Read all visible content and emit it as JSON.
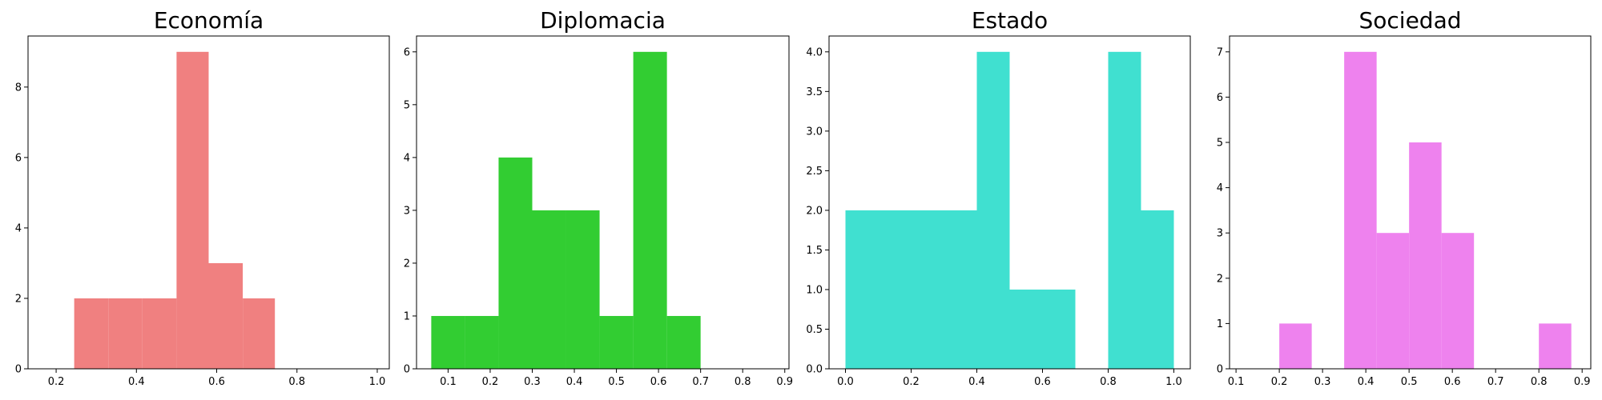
{
  "chart_data": [
    {
      "type": "bar",
      "title": "Economía",
      "color": "#f08080",
      "xlim": [
        0.13,
        1.03
      ],
      "ylim": [
        0,
        9.45
      ],
      "xticks": [
        0.2,
        0.4,
        0.6,
        0.8,
        1.0
      ],
      "xtick_labels": [
        "0.2",
        "0.4",
        "0.6",
        "0.8",
        "1.0"
      ],
      "yticks": [
        0,
        2,
        4,
        6,
        8
      ],
      "ytick_labels": [
        "0",
        "2",
        "4",
        "6",
        "8"
      ],
      "bins": [
        {
          "x0": 0.245,
          "x1": 0.33,
          "count": 2
        },
        {
          "x0": 0.33,
          "x1": 0.415,
          "count": 2
        },
        {
          "x0": 0.415,
          "x1": 0.5,
          "count": 2
        },
        {
          "x0": 0.5,
          "x1": 0.58,
          "count": 9
        },
        {
          "x0": 0.58,
          "x1": 0.665,
          "count": 3
        },
        {
          "x0": 0.665,
          "x1": 0.745,
          "count": 2
        }
      ]
    },
    {
      "type": "bar",
      "title": "Diplomacia",
      "color": "#32cd32",
      "xlim": [
        0.025,
        0.91
      ],
      "ylim": [
        0,
        6.3
      ],
      "xticks": [
        0.1,
        0.2,
        0.3,
        0.4,
        0.5,
        0.6,
        0.7,
        0.8,
        0.9
      ],
      "xtick_labels": [
        "0.1",
        "0.2",
        "0.3",
        "0.4",
        "0.5",
        "0.6",
        "0.7",
        "0.8",
        "0.9"
      ],
      "yticks": [
        0,
        1,
        2,
        3,
        4,
        5,
        6
      ],
      "ytick_labels": [
        "0",
        "1",
        "2",
        "3",
        "4",
        "5",
        "6"
      ],
      "bins": [
        {
          "x0": 0.06,
          "x1": 0.14,
          "count": 1
        },
        {
          "x0": 0.14,
          "x1": 0.22,
          "count": 1
        },
        {
          "x0": 0.22,
          "x1": 0.3,
          "count": 4
        },
        {
          "x0": 0.3,
          "x1": 0.38,
          "count": 3
        },
        {
          "x0": 0.38,
          "x1": 0.46,
          "count": 3
        },
        {
          "x0": 0.46,
          "x1": 0.54,
          "count": 1
        },
        {
          "x0": 0.54,
          "x1": 0.62,
          "count": 6
        },
        {
          "x0": 0.62,
          "x1": 0.7,
          "count": 1
        }
      ]
    },
    {
      "type": "bar",
      "title": "Estado",
      "color": "#40e0d0",
      "xlim": [
        -0.05,
        1.05
      ],
      "ylim": [
        0,
        4.2
      ],
      "xticks": [
        0.0,
        0.2,
        0.4,
        0.6,
        0.8,
        1.0
      ],
      "xtick_labels": [
        "0.0",
        "0.2",
        "0.4",
        "0.6",
        "0.8",
        "1.0"
      ],
      "yticks": [
        0,
        0.5,
        1.0,
        1.5,
        2.0,
        2.5,
        3.0,
        3.5,
        4.0
      ],
      "ytick_labels": [
        "0.0",
        "0.5",
        "1.0",
        "1.5",
        "2.0",
        "2.5",
        "3.0",
        "3.5",
        "4.0"
      ],
      "bins": [
        {
          "x0": 0.0,
          "x1": 0.1,
          "count": 2
        },
        {
          "x0": 0.1,
          "x1": 0.2,
          "count": 2
        },
        {
          "x0": 0.2,
          "x1": 0.3,
          "count": 2
        },
        {
          "x0": 0.3,
          "x1": 0.4,
          "count": 2
        },
        {
          "x0": 0.4,
          "x1": 0.5,
          "count": 4
        },
        {
          "x0": 0.5,
          "x1": 0.6,
          "count": 1
        },
        {
          "x0": 0.6,
          "x1": 0.7,
          "count": 1
        },
        {
          "x0": 0.7,
          "x1": 0.8,
          "count": 0
        },
        {
          "x0": 0.8,
          "x1": 0.9,
          "count": 4
        },
        {
          "x0": 0.9,
          "x1": 1.0,
          "count": 2
        }
      ]
    },
    {
      "type": "bar",
      "title": "Sociedad",
      "color": "#ee82ee",
      "xlim": [
        0.085,
        0.92
      ],
      "ylim": [
        0,
        7.35
      ],
      "xticks": [
        0.1,
        0.2,
        0.3,
        0.4,
        0.5,
        0.6,
        0.7,
        0.8,
        0.9
      ],
      "xtick_labels": [
        "0.1",
        "0.2",
        "0.3",
        "0.4",
        "0.5",
        "0.6",
        "0.7",
        "0.8",
        "0.9"
      ],
      "yticks": [
        0,
        1,
        2,
        3,
        4,
        5,
        6,
        7
      ],
      "ytick_labels": [
        "0",
        "1",
        "2",
        "3",
        "4",
        "5",
        "6",
        "7"
      ],
      "bins": [
        {
          "x0": 0.2,
          "x1": 0.275,
          "count": 1
        },
        {
          "x0": 0.275,
          "x1": 0.35,
          "count": 0
        },
        {
          "x0": 0.35,
          "x1": 0.425,
          "count": 7
        },
        {
          "x0": 0.425,
          "x1": 0.5,
          "count": 3
        },
        {
          "x0": 0.5,
          "x1": 0.575,
          "count": 5
        },
        {
          "x0": 0.575,
          "x1": 0.65,
          "count": 3
        },
        {
          "x0": 0.65,
          "x1": 0.725,
          "count": 0
        },
        {
          "x0": 0.725,
          "x1": 0.8,
          "count": 0
        },
        {
          "x0": 0.8,
          "x1": 0.875,
          "count": 1
        }
      ]
    }
  ]
}
